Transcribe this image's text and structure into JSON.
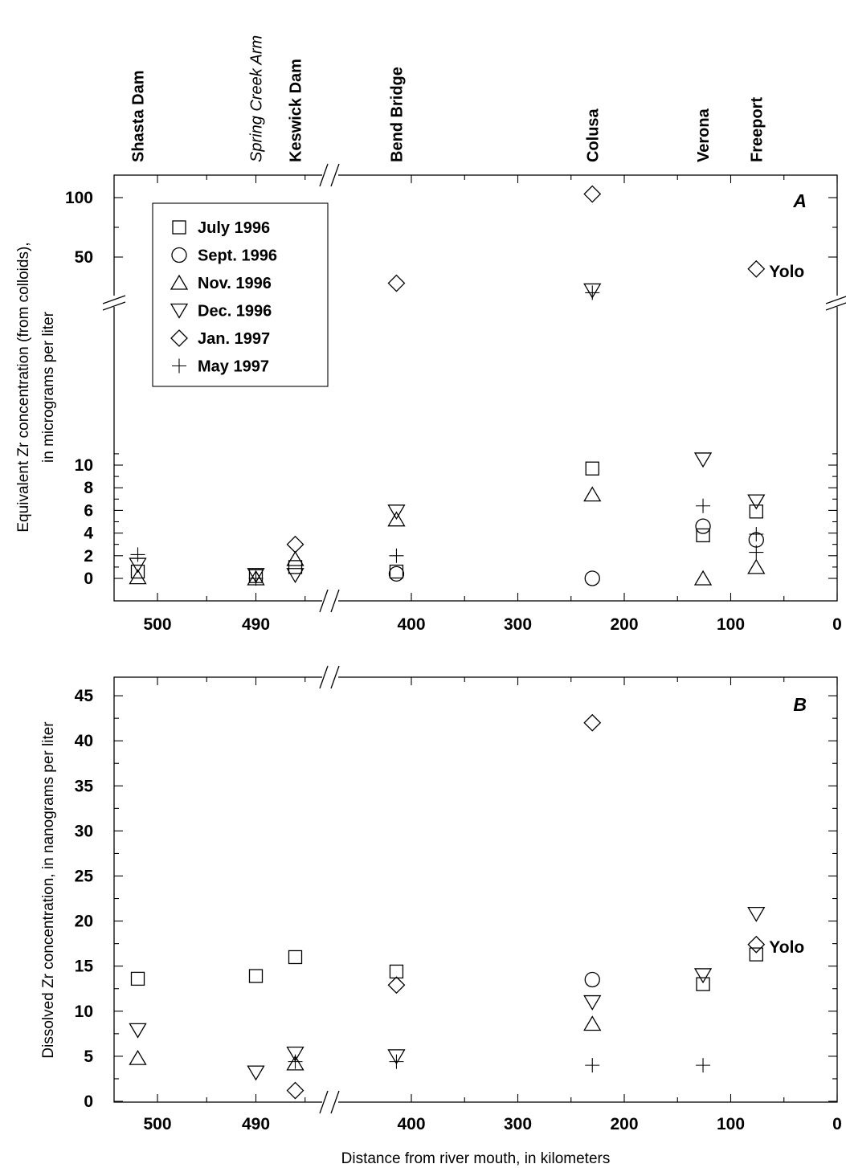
{
  "chart_data": [
    {
      "type": "scatter",
      "panel_label": "A",
      "ylabel_line1": "Equivalent Zr concentration (from colloids),",
      "ylabel_line2": "in micrograms per liter",
      "y_lower_ticks": [
        0,
        2,
        4,
        6,
        8,
        10
      ],
      "y_upper_ticks": [
        50,
        100
      ],
      "y_scale": "broken: 0-12 linear, then 50 and 100 above break",
      "x_ticks_left": [
        500,
        490
      ],
      "x_ticks_right": [
        400,
        300,
        200,
        100,
        0
      ],
      "x_scale": "broken: Shasta/Keswick reach expanded (500-485), then 400-0",
      "legend_position": "top-left",
      "sites": [
        {
          "name": "Shasta Dam",
          "x": 502,
          "italic": false
        },
        {
          "name": "Spring Creek Arm",
          "x": 490,
          "italic": true
        },
        {
          "name": "Keswick Dam",
          "x": 486,
          "italic": false
        },
        {
          "name": "Bend Bridge",
          "x": 414,
          "italic": false
        },
        {
          "name": "Colusa",
          "x": 230,
          "italic": false
        },
        {
          "name": "Verona",
          "x": 126,
          "italic": false
        },
        {
          "name": "Freeport",
          "x": 76,
          "italic": false
        }
      ],
      "annotation": {
        "text": "Yolo",
        "x": 76,
        "y": 40
      },
      "series": [
        {
          "name": "July 1996",
          "marker": "square",
          "points": [
            [
              502,
              0.6
            ],
            [
              490,
              0.2
            ],
            [
              486,
              1.0
            ],
            [
              414,
              0.6
            ],
            [
              230,
              9.7
            ],
            [
              126,
              3.8
            ],
            [
              76,
              5.9
            ]
          ]
        },
        {
          "name": "Sept. 1996",
          "marker": "circle",
          "points": [
            [
              414,
              0.4
            ],
            [
              230,
              0.0
            ],
            [
              126,
              4.6
            ],
            [
              76,
              3.4
            ]
          ]
        },
        {
          "name": "Nov. 1996",
          "marker": "triangle-up",
          "points": [
            [
              502,
              0.1
            ],
            [
              490,
              0.0
            ],
            [
              486,
              1.7
            ],
            [
              414,
              5.2
            ],
            [
              230,
              7.4
            ],
            [
              126,
              0.0
            ],
            [
              76,
              1.0
            ]
          ]
        },
        {
          "name": "Dec. 1996",
          "marker": "triangle-down",
          "points": [
            [
              502,
              1.2
            ],
            [
              490,
              0.3
            ],
            [
              486,
              0.3
            ],
            [
              414,
              5.9
            ],
            [
              230,
              22
            ],
            [
              126,
              10.5
            ],
            [
              76,
              6.8
            ]
          ]
        },
        {
          "name": "Jan. 1997",
          "marker": "diamond",
          "points": [
            [
              486,
              3.0
            ],
            [
              414,
              28
            ],
            [
              230,
              103
            ],
            [
              76,
              40
            ]
          ]
        },
        {
          "name": "May 1997",
          "marker": "plus",
          "points": [
            [
              502,
              2.1
            ],
            [
              490,
              0.0
            ],
            [
              414,
              2.0
            ],
            [
              230,
              20
            ],
            [
              126,
              6.4
            ],
            [
              76,
              3.9
            ],
            [
              76,
              2.3
            ]
          ]
        }
      ]
    },
    {
      "type": "scatter",
      "panel_label": "B",
      "ylabel": "Dissolved Zr concentration, in nanograms per liter",
      "xlabel": "Distance from river mouth, in kilometers",
      "y_ticks": [
        0,
        5,
        10,
        15,
        20,
        25,
        30,
        35,
        40,
        45
      ],
      "ylim": [
        0,
        47
      ],
      "x_ticks_left": [
        500,
        490
      ],
      "x_ticks_right": [
        400,
        300,
        200,
        100,
        0
      ],
      "annotation": {
        "text": "Yolo",
        "x": 76,
        "y": 17.4
      },
      "series": [
        {
          "name": "July 1996",
          "marker": "square",
          "points": [
            [
              502,
              13.6
            ],
            [
              490,
              13.9
            ],
            [
              486,
              16.0
            ],
            [
              414,
              14.4
            ],
            [
              126,
              13.0
            ],
            [
              76,
              16.3
            ]
          ]
        },
        {
          "name": "Sept. 1996",
          "marker": "circle",
          "points": [
            [
              230,
              13.5
            ]
          ]
        },
        {
          "name": "Nov. 1996",
          "marker": "triangle-up",
          "points": [
            [
              502,
              4.8
            ],
            [
              486,
              4.2
            ],
            [
              230,
              8.6
            ]
          ]
        },
        {
          "name": "Dec. 1996",
          "marker": "triangle-down",
          "points": [
            [
              502,
              7.9
            ],
            [
              490,
              3.2
            ],
            [
              486,
              5.3
            ],
            [
              414,
              5.0
            ],
            [
              230,
              11.0
            ],
            [
              126,
              14.0
            ],
            [
              76,
              20.8
            ]
          ]
        },
        {
          "name": "Jan. 1997",
          "marker": "diamond",
          "points": [
            [
              486,
              1.2
            ],
            [
              414,
              12.9
            ],
            [
              230,
              42.0
            ],
            [
              76,
              17.4
            ]
          ]
        },
        {
          "name": "May 1997",
          "marker": "plus",
          "points": [
            [
              486,
              4.4
            ],
            [
              414,
              4.4
            ],
            [
              230,
              4.0
            ],
            [
              126,
              4.0
            ]
          ]
        }
      ]
    }
  ]
}
